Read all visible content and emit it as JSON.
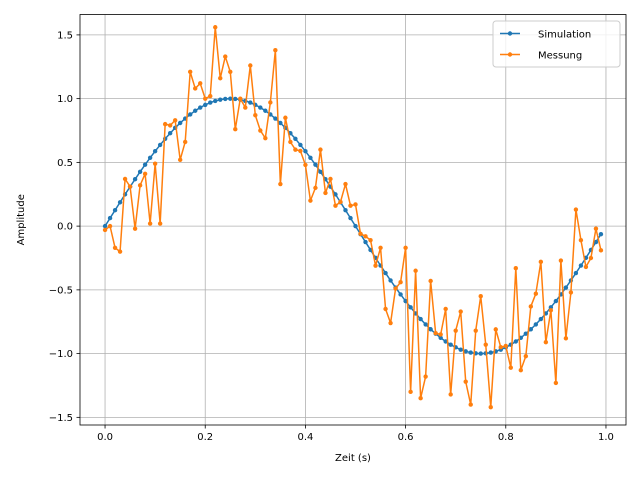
{
  "chart_data": {
    "type": "line",
    "xlabel": "Zeit (s)",
    "ylabel": "Amplitude",
    "xlim": [
      -0.05,
      1.04
    ],
    "ylim": [
      -1.56,
      1.66
    ],
    "xticks": [
      0.0,
      0.2,
      0.4,
      0.6,
      0.8,
      1.0
    ],
    "xtick_labels": [
      "0.0",
      "0.2",
      "0.4",
      "0.6",
      "0.8",
      "1.0"
    ],
    "yticks": [
      -1.5,
      -1.0,
      -0.5,
      0.0,
      0.5,
      1.0,
      1.5
    ],
    "ytick_labels": [
      "−1.5",
      "−1.0",
      "−0.5",
      "0.0",
      "0.5",
      "1.0",
      "1.5"
    ],
    "grid": true,
    "legend_position": "top-right",
    "x": [
      0.0,
      0.01,
      0.02,
      0.03,
      0.04,
      0.05,
      0.06,
      0.07,
      0.08,
      0.09,
      0.1,
      0.11,
      0.12,
      0.13,
      0.14,
      0.15,
      0.16,
      0.17,
      0.18,
      0.19,
      0.2,
      0.21,
      0.22,
      0.23,
      0.24,
      0.25,
      0.26,
      0.27,
      0.28,
      0.29,
      0.3,
      0.31,
      0.32,
      0.33,
      0.34,
      0.35,
      0.36,
      0.37,
      0.38,
      0.39,
      0.4,
      0.41,
      0.42,
      0.43,
      0.44,
      0.45,
      0.46,
      0.47,
      0.48,
      0.49,
      0.5,
      0.51,
      0.52,
      0.53,
      0.54,
      0.55,
      0.56,
      0.57,
      0.58,
      0.59,
      0.6,
      0.61,
      0.62,
      0.63,
      0.64,
      0.65,
      0.66,
      0.67,
      0.68,
      0.69,
      0.7,
      0.71,
      0.72,
      0.73,
      0.74,
      0.75,
      0.76,
      0.77,
      0.78,
      0.79,
      0.8,
      0.81,
      0.82,
      0.83,
      0.84,
      0.85,
      0.86,
      0.87,
      0.88,
      0.89,
      0.9,
      0.91,
      0.92,
      0.93,
      0.94,
      0.95,
      0.96,
      0.97,
      0.98,
      0.99
    ],
    "series": [
      {
        "name": "Simulation",
        "color": "#1f77b4",
        "values": [
          0.0,
          0.063,
          0.125,
          0.187,
          0.249,
          0.309,
          0.368,
          0.426,
          0.482,
          0.536,
          0.588,
          0.637,
          0.685,
          0.729,
          0.771,
          0.809,
          0.844,
          0.876,
          0.905,
          0.93,
          0.951,
          0.969,
          0.982,
          0.992,
          0.998,
          1.0,
          0.998,
          0.992,
          0.982,
          0.969,
          0.951,
          0.93,
          0.905,
          0.876,
          0.844,
          0.809,
          0.771,
          0.729,
          0.685,
          0.637,
          0.588,
          0.536,
          0.482,
          0.426,
          0.368,
          0.309,
          0.249,
          0.187,
          0.125,
          0.063,
          0.0,
          -0.063,
          -0.125,
          -0.187,
          -0.249,
          -0.309,
          -0.368,
          -0.426,
          -0.482,
          -0.536,
          -0.588,
          -0.637,
          -0.685,
          -0.729,
          -0.771,
          -0.809,
          -0.844,
          -0.876,
          -0.905,
          -0.93,
          -0.951,
          -0.969,
          -0.982,
          -0.992,
          -0.998,
          -1.0,
          -0.998,
          -0.992,
          -0.982,
          -0.969,
          -0.951,
          -0.93,
          -0.905,
          -0.876,
          -0.844,
          -0.809,
          -0.771,
          -0.729,
          -0.685,
          -0.637,
          -0.588,
          -0.536,
          -0.482,
          -0.426,
          -0.368,
          -0.309,
          -0.249,
          -0.187,
          -0.125,
          -0.063
        ]
      },
      {
        "name": "Messung",
        "color": "#ff7f0e",
        "values": [
          -0.03,
          0.0,
          -0.17,
          -0.2,
          0.37,
          0.31,
          -0.02,
          0.32,
          0.41,
          0.02,
          0.49,
          0.02,
          0.8,
          0.79,
          0.83,
          0.52,
          0.66,
          1.21,
          1.08,
          1.12,
          1.0,
          1.02,
          1.56,
          1.16,
          1.33,
          1.21,
          0.76,
          1.0,
          0.93,
          1.26,
          0.87,
          0.75,
          0.69,
          0.97,
          1.38,
          0.33,
          0.85,
          0.66,
          0.6,
          0.59,
          0.48,
          0.2,
          0.3,
          0.6,
          0.26,
          0.37,
          0.16,
          0.19,
          0.33,
          0.16,
          0.17,
          -0.06,
          -0.08,
          -0.11,
          -0.31,
          -0.17,
          -0.65,
          -0.76,
          -0.49,
          -0.44,
          -0.17,
          -1.3,
          -0.35,
          -1.35,
          -1.18,
          -0.43,
          -0.84,
          -0.85,
          -0.65,
          -1.32,
          -0.82,
          -0.67,
          -1.22,
          -1.4,
          -0.82,
          -0.55,
          -0.93,
          -1.42,
          -0.81,
          -0.95,
          -0.94,
          -1.11,
          -0.33,
          -1.13,
          -1.02,
          -0.63,
          -0.53,
          -0.28,
          -0.91,
          -0.66,
          -1.23,
          -0.27,
          -0.88,
          -0.52,
          0.13,
          -0.11,
          -0.32,
          -0.25,
          -0.02,
          -0.19
        ]
      }
    ]
  }
}
